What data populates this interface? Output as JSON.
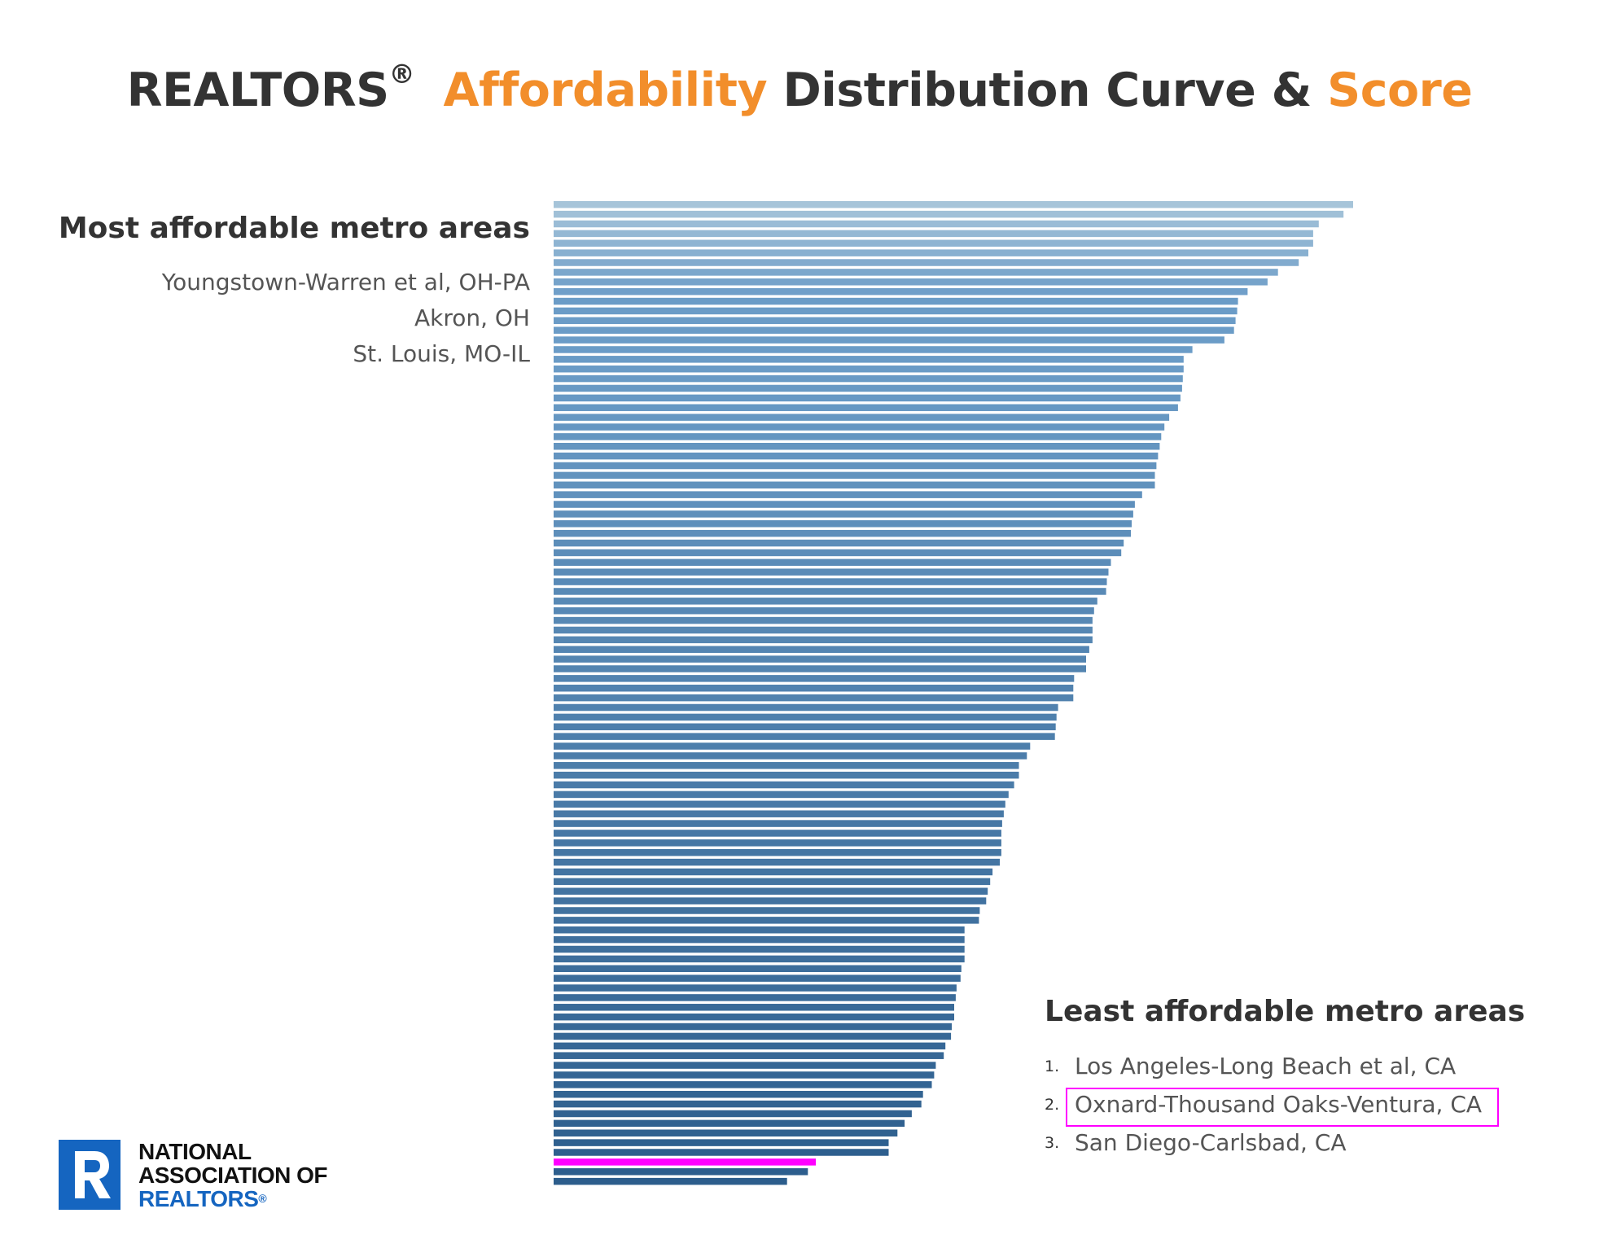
{
  "title": {
    "part1": "REALTORS",
    "reg": "®",
    "part2": "Affordability",
    "part3": "Distribution Curve &",
    "part4": "Score"
  },
  "most_affordable": {
    "heading": "Most affordable metro areas",
    "items": [
      "Youngstown-Warren et al, OH-PA",
      "Akron, OH",
      "St. Louis, MO-IL"
    ]
  },
  "least_affordable": {
    "heading": "Least affordable metro areas",
    "items": [
      {
        "rank": "1.",
        "name": "Los Angeles-Long Beach et al, CA"
      },
      {
        "rank": "2.",
        "name": "Oxnard-Thousand Oaks-Ventura, CA"
      },
      {
        "rank": "3.",
        "name": "San Diego-Carlsbad, CA"
      }
    ]
  },
  "logo": {
    "line1": "NATIONAL",
    "line2": "ASSOCIATION OF",
    "line3": "REALTORS",
    "reg": "®"
  },
  "colors": {
    "accent": "#f28e2b",
    "title_text": "#333333",
    "bar_light": "#c5d9e3",
    "bar_mid": "#6b9cc7",
    "bar_dark": "#2c5d8c",
    "highlight": "#ff00ff",
    "logo_blue": "#1565c0"
  },
  "chart_data": {
    "type": "bar",
    "orientation": "horizontal",
    "sort": "descending",
    "highlighted_index": 99,
    "values": [
      1000,
      988,
      957,
      950,
      950,
      944,
      932,
      906,
      893,
      868,
      856,
      855,
      853,
      851,
      839,
      799,
      788,
      788,
      787,
      786,
      784,
      781,
      770,
      764,
      760,
      758,
      756,
      754,
      752,
      752,
      736,
      727,
      725,
      723,
      722,
      713,
      710,
      697,
      694,
      692,
      691,
      680,
      676,
      674,
      674,
      674,
      670,
      666,
      666,
      651,
      650,
      650,
      631,
      629,
      628,
      627,
      596,
      592,
      582,
      582,
      576,
      569,
      565,
      563,
      561,
      560,
      560,
      560,
      558,
      549,
      546,
      543,
      541,
      533,
      532,
      514,
      514,
      514,
      514,
      510,
      509,
      504,
      503,
      501,
      501,
      498,
      497,
      490,
      488,
      478,
      476,
      473,
      462,
      460,
      448,
      439,
      430,
      419,
      419,
      328,
      318,
      292
    ]
  }
}
